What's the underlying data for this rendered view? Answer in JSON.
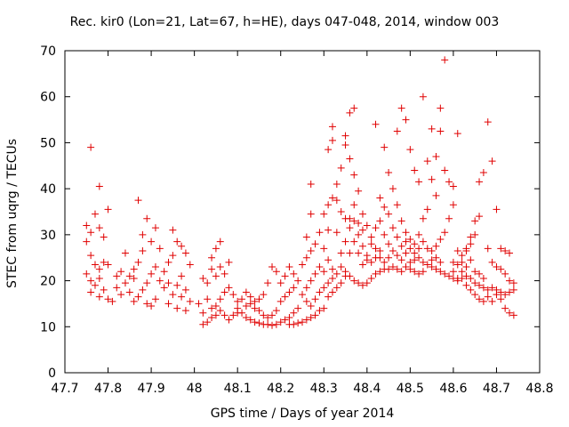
{
  "chart_data": {
    "type": "scatter",
    "title": "Rec. kir0 (Lon=21, Lat=67, h=HE), days 047-048, 2014, window 003",
    "xlabel": "GPS time / Days of year 2014",
    "ylabel": "STEC from uqrg / TECUs",
    "xlim": [
      47.7,
      48.8
    ],
    "ylim": [
      0,
      70
    ],
    "xticks": [
      "47.7",
      "47.8",
      "47.9",
      "48",
      "48.1",
      "48.2",
      "48.3",
      "48.4",
      "48.5",
      "48.6",
      "48.7",
      "48.8"
    ],
    "yticks": [
      "0",
      "10",
      "20",
      "30",
      "40",
      "50",
      "60",
      "70"
    ],
    "marker": "+",
    "color": "#e00000",
    "grid": false,
    "legend": "none",
    "points": [
      [
        47.76,
        49.0
      ],
      [
        47.78,
        40.5
      ],
      [
        47.8,
        35.5
      ],
      [
        47.75,
        32.0
      ],
      [
        47.76,
        30.5
      ],
      [
        47.77,
        34.5
      ],
      [
        47.79,
        29.5
      ],
      [
        47.78,
        31.5
      ],
      [
        47.75,
        28.5
      ],
      [
        47.76,
        25.5
      ],
      [
        47.77,
        23.5
      ],
      [
        47.78,
        22.5
      ],
      [
        47.79,
        24.0
      ],
      [
        47.8,
        23.5
      ],
      [
        47.75,
        21.5
      ],
      [
        47.76,
        20.0
      ],
      [
        47.77,
        19.0
      ],
      [
        47.78,
        20.5
      ],
      [
        47.79,
        18.0
      ],
      [
        47.8,
        16.0
      ],
      [
        47.76,
        17.5
      ],
      [
        47.78,
        16.5
      ],
      [
        47.81,
        15.5
      ],
      [
        47.82,
        18.5
      ],
      [
        47.83,
        17.0
      ],
      [
        47.84,
        19.5
      ],
      [
        47.85,
        21.0
      ],
      [
        47.86,
        22.5
      ],
      [
        47.87,
        24.0
      ],
      [
        47.88,
        26.5
      ],
      [
        47.84,
        26.0
      ],
      [
        47.82,
        21.0
      ],
      [
        47.83,
        22.0
      ],
      [
        47.85,
        17.5
      ],
      [
        47.86,
        15.5
      ],
      [
        47.87,
        16.5
      ],
      [
        47.88,
        18.0
      ],
      [
        47.89,
        19.5
      ],
      [
        47.9,
        21.5
      ],
      [
        47.91,
        23.0
      ],
      [
        47.87,
        37.5
      ],
      [
        47.89,
        33.5
      ],
      [
        47.91,
        31.5
      ],
      [
        47.88,
        30.0
      ],
      [
        47.9,
        28.5
      ],
      [
        47.86,
        20.5
      ],
      [
        47.89,
        15.0
      ],
      [
        47.9,
        14.5
      ],
      [
        47.91,
        16.0
      ],
      [
        47.92,
        20.0
      ],
      [
        47.93,
        22.0
      ],
      [
        47.94,
        24.0
      ],
      [
        47.95,
        25.5
      ],
      [
        47.92,
        27.0
      ],
      [
        47.95,
        31.0
      ],
      [
        47.96,
        28.5
      ],
      [
        47.97,
        27.5
      ],
      [
        47.98,
        26.0
      ],
      [
        47.99,
        23.5
      ],
      [
        47.97,
        21.0
      ],
      [
        47.96,
        19.0
      ],
      [
        47.95,
        17.0
      ],
      [
        47.94,
        15.0
      ],
      [
        47.96,
        14.0
      ],
      [
        47.98,
        13.5
      ],
      [
        47.99,
        15.5
      ],
      [
        47.98,
        18.0
      ],
      [
        47.97,
        16.5
      ],
      [
        47.93,
        18.5
      ],
      [
        47.94,
        19.5
      ],
      [
        48.02,
        20.5
      ],
      [
        48.03,
        19.5
      ],
      [
        48.04,
        22.5
      ],
      [
        48.05,
        21.0
      ],
      [
        48.06,
        23.0
      ],
      [
        48.07,
        21.5
      ],
      [
        48.08,
        24.0
      ],
      [
        48.06,
        28.5
      ],
      [
        48.05,
        27.0
      ],
      [
        48.04,
        25.0
      ],
      [
        48.01,
        15.0
      ],
      [
        48.02,
        13.0
      ],
      [
        48.03,
        11.0
      ],
      [
        48.02,
        10.5
      ],
      [
        48.04,
        12.0
      ],
      [
        48.05,
        14.5
      ],
      [
        48.06,
        16.0
      ],
      [
        48.07,
        17.5
      ],
      [
        48.08,
        18.5
      ],
      [
        48.09,
        17.0
      ],
      [
        48.1,
        15.5
      ],
      [
        48.1,
        14.0
      ],
      [
        48.11,
        13.0
      ],
      [
        48.12,
        12.0
      ],
      [
        48.13,
        11.5
      ],
      [
        48.14,
        11.0
      ],
      [
        48.15,
        10.8
      ],
      [
        48.16,
        10.5
      ],
      [
        48.17,
        10.5
      ],
      [
        48.18,
        10.3
      ],
      [
        48.19,
        10.5
      ],
      [
        48.2,
        11.0
      ],
      [
        48.21,
        11.5
      ],
      [
        48.22,
        12.0
      ],
      [
        48.23,
        13.0
      ],
      [
        48.24,
        14.0
      ],
      [
        48.12,
        14.5
      ],
      [
        48.13,
        15.0
      ],
      [
        48.14,
        14.0
      ],
      [
        48.15,
        13.5
      ],
      [
        48.16,
        12.5
      ],
      [
        48.17,
        12.0
      ],
      [
        48.18,
        12.5
      ],
      [
        48.19,
        13.5
      ],
      [
        48.2,
        15.5
      ],
      [
        48.21,
        16.5
      ],
      [
        48.22,
        17.5
      ],
      [
        48.23,
        18.5
      ],
      [
        48.24,
        20.0
      ],
      [
        48.11,
        16.0
      ],
      [
        48.12,
        17.5
      ],
      [
        48.13,
        16.5
      ],
      [
        48.14,
        15.5
      ],
      [
        48.07,
        12.5
      ],
      [
        48.08,
        11.5
      ],
      [
        48.09,
        12.5
      ],
      [
        48.1,
        13.0
      ],
      [
        48.06,
        13.5
      ],
      [
        48.05,
        12.5
      ],
      [
        48.04,
        14.0
      ],
      [
        48.03,
        16.0
      ],
      [
        48.18,
        23.0
      ],
      [
        48.19,
        22.0
      ],
      [
        48.17,
        19.5
      ],
      [
        48.16,
        17.0
      ],
      [
        48.15,
        16.0
      ],
      [
        48.2,
        19.5
      ],
      [
        48.21,
        21.0
      ],
      [
        48.22,
        23.0
      ],
      [
        48.23,
        21.5
      ],
      [
        48.25,
        17.0
      ],
      [
        48.26,
        18.5
      ],
      [
        48.27,
        20.0
      ],
      [
        48.28,
        21.5
      ],
      [
        48.29,
        23.0
      ],
      [
        48.3,
        22.0
      ],
      [
        48.26,
        15.5
      ],
      [
        48.27,
        14.5
      ],
      [
        48.28,
        16.0
      ],
      [
        48.29,
        17.5
      ],
      [
        48.3,
        18.5
      ],
      [
        48.31,
        19.5
      ],
      [
        48.32,
        20.5
      ],
      [
        48.25,
        23.5
      ],
      [
        48.26,
        25.0
      ],
      [
        48.27,
        26.5
      ],
      [
        48.28,
        28.0
      ],
      [
        48.26,
        29.5
      ],
      [
        48.27,
        34.5
      ],
      [
        48.27,
        41.0
      ],
      [
        48.29,
        30.5
      ],
      [
        48.3,
        34.5
      ],
      [
        48.31,
        36.5
      ],
      [
        48.32,
        38.0
      ],
      [
        48.31,
        31.0
      ],
      [
        48.3,
        27.0
      ],
      [
        48.31,
        24.5
      ],
      [
        48.32,
        22.5
      ],
      [
        48.33,
        21.5
      ],
      [
        48.34,
        23.0
      ],
      [
        48.35,
        22.0
      ],
      [
        48.36,
        21.0
      ],
      [
        48.37,
        20.0
      ],
      [
        48.38,
        19.5
      ],
      [
        48.39,
        19.0
      ],
      [
        48.4,
        19.5
      ],
      [
        48.41,
        20.5
      ],
      [
        48.42,
        21.5
      ],
      [
        48.43,
        22.0
      ],
      [
        48.44,
        22.5
      ],
      [
        48.45,
        22.5
      ],
      [
        48.46,
        23.0
      ],
      [
        48.47,
        22.5
      ],
      [
        48.48,
        22.0
      ],
      [
        48.49,
        23.0
      ],
      [
        48.5,
        24.0
      ],
      [
        48.51,
        24.5
      ],
      [
        48.52,
        25.0
      ],
      [
        48.53,
        24.0
      ],
      [
        48.54,
        23.5
      ],
      [
        48.55,
        23.0
      ],
      [
        48.56,
        22.5
      ],
      [
        48.57,
        22.0
      ],
      [
        48.58,
        21.5
      ],
      [
        48.59,
        21.0
      ],
      [
        48.6,
        20.5
      ],
      [
        48.61,
        20.0
      ],
      [
        48.62,
        20.5
      ],
      [
        48.63,
        21.0
      ],
      [
        48.64,
        20.5
      ],
      [
        48.65,
        19.5
      ],
      [
        48.66,
        19.0
      ],
      [
        48.67,
        18.5
      ],
      [
        48.68,
        18.0
      ],
      [
        48.69,
        18.5
      ],
      [
        48.7,
        18.0
      ],
      [
        48.71,
        17.5
      ],
      [
        48.72,
        17.0
      ],
      [
        48.73,
        17.5
      ],
      [
        48.74,
        18.0
      ],
      [
        48.31,
        48.5
      ],
      [
        48.32,
        50.5
      ],
      [
        48.32,
        53.5
      ],
      [
        48.33,
        41.0
      ],
      [
        48.34,
        44.5
      ],
      [
        48.35,
        49.5
      ],
      [
        48.35,
        51.5
      ],
      [
        48.36,
        46.5
      ],
      [
        48.37,
        43.0
      ],
      [
        48.38,
        39.5
      ],
      [
        48.36,
        56.5
      ],
      [
        48.37,
        57.5
      ],
      [
        48.39,
        34.5
      ],
      [
        48.36,
        33.5
      ],
      [
        48.35,
        28.5
      ],
      [
        48.34,
        26.0
      ],
      [
        48.33,
        30.5
      ],
      [
        48.37,
        36.5
      ],
      [
        48.38,
        30.0
      ],
      [
        48.39,
        27.5
      ],
      [
        48.4,
        25.5
      ],
      [
        48.41,
        28.0
      ],
      [
        48.42,
        31.5
      ],
      [
        48.43,
        33.0
      ],
      [
        48.44,
        30.0
      ],
      [
        48.45,
        28.0
      ],
      [
        48.43,
        38.0
      ],
      [
        48.42,
        54.0
      ],
      [
        48.44,
        49.0
      ],
      [
        48.45,
        43.5
      ],
      [
        48.46,
        40.0
      ],
      [
        48.47,
        36.5
      ],
      [
        48.48,
        33.0
      ],
      [
        48.49,
        30.5
      ],
      [
        48.5,
        29.0
      ],
      [
        48.51,
        28.0
      ],
      [
        48.52,
        30.0
      ],
      [
        48.53,
        33.5
      ],
      [
        48.54,
        35.5
      ],
      [
        48.48,
        57.5
      ],
      [
        48.49,
        55.0
      ],
      [
        48.47,
        52.5
      ],
      [
        48.5,
        48.5
      ],
      [
        48.51,
        44.0
      ],
      [
        48.52,
        41.5
      ],
      [
        48.53,
        60.0
      ],
      [
        48.55,
        53.0
      ],
      [
        48.54,
        46.0
      ],
      [
        48.55,
        42.0
      ],
      [
        48.56,
        38.5
      ],
      [
        48.57,
        57.5
      ],
      [
        48.57,
        52.5
      ],
      [
        48.56,
        47.0
      ],
      [
        48.58,
        44.0
      ],
      [
        48.59,
        41.5
      ],
      [
        48.58,
        68.0
      ],
      [
        48.6,
        40.5
      ],
      [
        48.61,
        52.0
      ],
      [
        48.6,
        36.5
      ],
      [
        48.59,
        33.5
      ],
      [
        48.58,
        30.5
      ],
      [
        48.57,
        29.0
      ],
      [
        48.56,
        27.5
      ],
      [
        48.55,
        26.5
      ],
      [
        48.54,
        27.0
      ],
      [
        48.53,
        28.5
      ],
      [
        48.52,
        27.0
      ],
      [
        48.51,
        26.0
      ],
      [
        48.5,
        27.0
      ],
      [
        48.49,
        28.5
      ],
      [
        48.48,
        27.5
      ],
      [
        48.47,
        29.5
      ],
      [
        48.46,
        31.5
      ],
      [
        48.45,
        34.5
      ],
      [
        48.44,
        36.0
      ],
      [
        48.43,
        26.5
      ],
      [
        48.42,
        25.0
      ],
      [
        48.41,
        24.0
      ],
      [
        48.4,
        24.5
      ],
      [
        48.39,
        23.5
      ],
      [
        48.38,
        26.0
      ],
      [
        48.37,
        28.5
      ],
      [
        48.36,
        31.5
      ],
      [
        48.35,
        33.5
      ],
      [
        48.34,
        35.0
      ],
      [
        48.33,
        37.5
      ],
      [
        48.62,
        24.0
      ],
      [
        48.63,
        26.5
      ],
      [
        48.64,
        28.0
      ],
      [
        48.65,
        30.0
      ],
      [
        48.66,
        34.0
      ],
      [
        48.67,
        43.5
      ],
      [
        48.68,
        54.5
      ],
      [
        48.69,
        46.0
      ],
      [
        48.7,
        35.5
      ],
      [
        48.71,
        27.0
      ],
      [
        48.72,
        26.5
      ],
      [
        48.73,
        26.0
      ],
      [
        48.66,
        41.5
      ],
      [
        48.65,
        33.0
      ],
      [
        48.64,
        29.5
      ],
      [
        48.63,
        27.0
      ],
      [
        48.62,
        25.5
      ],
      [
        48.61,
        23.5
      ],
      [
        48.6,
        22.0
      ],
      [
        48.61,
        26.5
      ],
      [
        48.6,
        24.0
      ],
      [
        48.62,
        22.0
      ],
      [
        48.63,
        23.0
      ],
      [
        48.64,
        24.5
      ],
      [
        48.65,
        22.0
      ],
      [
        48.66,
        21.5
      ],
      [
        48.67,
        20.5
      ],
      [
        48.68,
        27.0
      ],
      [
        48.69,
        24.0
      ],
      [
        48.7,
        23.0
      ],
      [
        48.71,
        22.5
      ],
      [
        48.72,
        21.5
      ],
      [
        48.73,
        20.0
      ],
      [
        48.74,
        19.5
      ],
      [
        48.65,
        17.0
      ],
      [
        48.66,
        16.0
      ],
      [
        48.67,
        15.5
      ],
      [
        48.68,
        16.5
      ],
      [
        48.69,
        15.5
      ],
      [
        48.7,
        17.0
      ],
      [
        48.71,
        16.0
      ],
      [
        48.72,
        14.0
      ],
      [
        48.73,
        13.0
      ],
      [
        48.74,
        12.5
      ],
      [
        48.64,
        18.0
      ],
      [
        48.63,
        19.0
      ],
      [
        48.61,
        20.5
      ],
      [
        48.57,
        24.0
      ],
      [
        48.56,
        25.0
      ],
      [
        48.55,
        24.5
      ],
      [
        48.53,
        22.0
      ],
      [
        48.52,
        21.5
      ],
      [
        48.51,
        22.0
      ],
      [
        48.5,
        22.5
      ],
      [
        48.49,
        26.0
      ],
      [
        48.48,
        24.5
      ],
      [
        48.47,
        25.5
      ],
      [
        48.46,
        26.5
      ],
      [
        48.45,
        25.0
      ],
      [
        48.44,
        24.0
      ],
      [
        48.43,
        25.0
      ],
      [
        48.42,
        27.0
      ],
      [
        48.41,
        29.5
      ],
      [
        48.4,
        32.0
      ],
      [
        48.39,
        31.0
      ],
      [
        48.38,
        32.5
      ],
      [
        48.37,
        33.0
      ],
      [
        48.36,
        26.0
      ],
      [
        48.35,
        21.0
      ],
      [
        48.34,
        19.5
      ],
      [
        48.33,
        18.5
      ],
      [
        48.32,
        17.5
      ],
      [
        48.31,
        16.5
      ],
      [
        48.3,
        14.0
      ],
      [
        48.29,
        13.5
      ],
      [
        48.28,
        12.5
      ],
      [
        48.27,
        12.0
      ],
      [
        48.26,
        11.5
      ],
      [
        48.25,
        11.0
      ],
      [
        48.24,
        10.8
      ],
      [
        48.23,
        10.5
      ],
      [
        48.22,
        10.5
      ]
    ]
  }
}
